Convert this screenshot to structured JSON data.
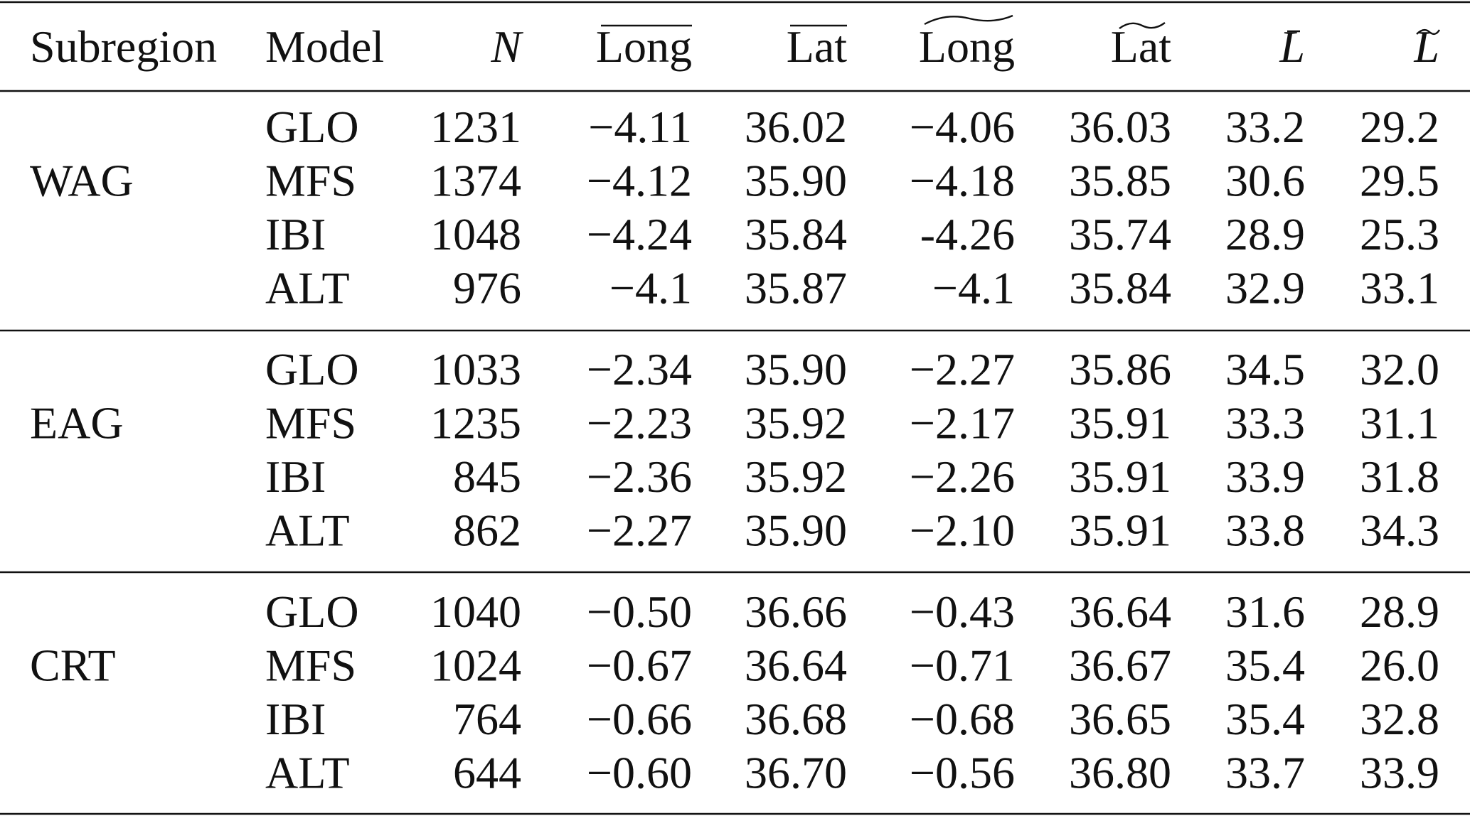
{
  "table": {
    "header": [
      "Subregion",
      "Model",
      "N",
      "Long",
      "Lat",
      "Long",
      "Lat",
      "L",
      "L"
    ],
    "groups": [
      {
        "subregion": "WAG",
        "rows": [
          [
            "GLO",
            "1231",
            "−4.11",
            "36.02",
            "−4.06",
            "36.03",
            "33.2",
            "29.2"
          ],
          [
            "MFS",
            "1374",
            "−4.12",
            "35.90",
            "−4.18",
            "35.85",
            "30.6",
            "29.5"
          ],
          [
            "IBI",
            "1048",
            "−4.24",
            "35.84",
            "-4.26",
            "35.74",
            "28.9",
            "25.3"
          ],
          [
            "ALT",
            "976",
            "−4.1",
            "35.87",
            "−4.1",
            "35.84",
            "32.9",
            "33.1"
          ]
        ]
      },
      {
        "subregion": "EAG",
        "rows": [
          [
            "GLO",
            "1033",
            "−2.34",
            "35.90",
            "−2.27",
            "35.86",
            "34.5",
            "32.0"
          ],
          [
            "MFS",
            "1235",
            "−2.23",
            "35.92",
            "−2.17",
            "35.91",
            "33.3",
            "31.1"
          ],
          [
            "IBI",
            "845",
            "−2.36",
            "35.92",
            "−2.26",
            "35.91",
            "33.9",
            "31.8"
          ],
          [
            "ALT",
            "862",
            "−2.27",
            "35.90",
            "−2.10",
            "35.91",
            "33.8",
            "34.3"
          ]
        ]
      },
      {
        "subregion": "CRT",
        "rows": [
          [
            "GLO",
            "1040",
            "−0.50",
            "36.66",
            "−0.43",
            "36.64",
            "31.6",
            "28.9"
          ],
          [
            "MFS",
            "1024",
            "−0.67",
            "36.64",
            "−0.71",
            "36.67",
            "35.4",
            "26.0"
          ],
          [
            "IBI",
            "764",
            "−0.66",
            "36.68",
            "−0.68",
            "36.65",
            "35.4",
            "32.8"
          ],
          [
            "ALT",
            "644",
            "−0.60",
            "36.70",
            "−0.56",
            "36.80",
            "33.7",
            "33.9"
          ]
        ]
      }
    ]
  }
}
